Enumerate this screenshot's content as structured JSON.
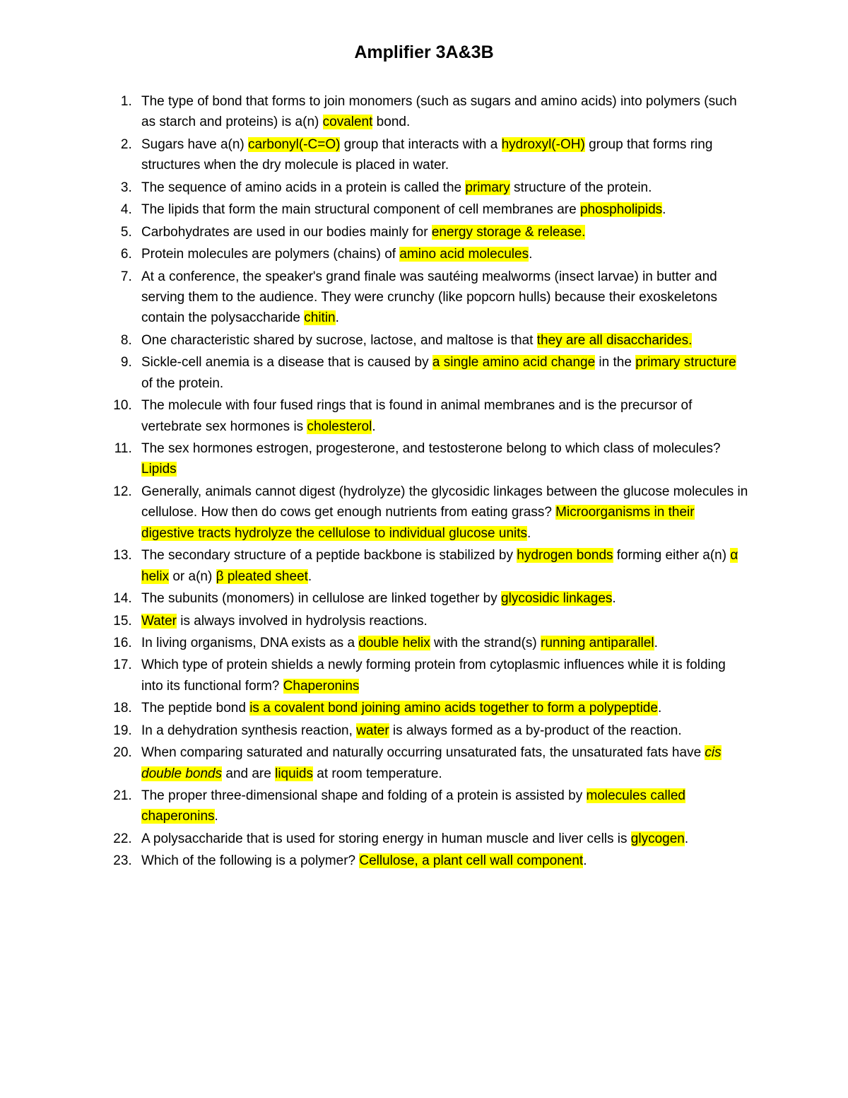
{
  "title": "Amplifier 3A&3B",
  "highlight_color": "#ffff00",
  "background_color": "#ffffff",
  "text_color": "#000000",
  "title_fontsize": 25,
  "body_fontsize": 19,
  "items": [
    {
      "segments": [
        {
          "t": "The type of bond that forms to join monomers (such as sugars and amino acids) into polymers (such as starch and proteins) is a(n) "
        },
        {
          "t": "covalent",
          "hl": true
        },
        {
          "t": " bond."
        }
      ]
    },
    {
      "segments": [
        {
          "t": "Sugars have a(n) "
        },
        {
          "t": "carbonyl(-C=O)",
          "hl": true
        },
        {
          "t": " group that interacts with a "
        },
        {
          "t": "hydroxyl(-OH)",
          "hl": true
        },
        {
          "t": " group that forms ring structures when the dry molecule is placed in water."
        }
      ]
    },
    {
      "segments": [
        {
          "t": "The sequence of amino acids in a protein is called the "
        },
        {
          "t": "primary",
          "hl": true
        },
        {
          "t": " structure of the protein."
        }
      ]
    },
    {
      "segments": [
        {
          "t": "The lipids that form the main structural component of cell membranes are "
        },
        {
          "t": "phospholipids",
          "hl": true
        },
        {
          "t": "."
        }
      ]
    },
    {
      "segments": [
        {
          "t": "Carbohydrates are used in our bodies mainly for "
        },
        {
          "t": "energy storage & release.",
          "hl": true
        }
      ]
    },
    {
      "segments": [
        {
          "t": "Protein molecules are polymers (chains) of "
        },
        {
          "t": "amino acid molecules",
          "hl": true
        },
        {
          "t": "."
        }
      ]
    },
    {
      "segments": [
        {
          "t": "At a conference, the speaker's grand finale was sautéing mealworms (insect larvae) in butter and serving them to the audience. They were crunchy (like popcorn hulls) because their exoskeletons contain the polysaccharide "
        },
        {
          "t": "chitin",
          "hl": true
        },
        {
          "t": "."
        }
      ]
    },
    {
      "segments": [
        {
          "t": "One characteristic shared by sucrose, lactose, and maltose is that "
        },
        {
          "t": "they are all disaccharides.",
          "hl": true
        }
      ]
    },
    {
      "segments": [
        {
          "t": "Sickle-cell anemia is a disease that is caused by "
        },
        {
          "t": "a single amino acid change",
          "hl": true
        },
        {
          "t": " in the "
        },
        {
          "t": "primary structure",
          "hl": true
        },
        {
          "t": " of the protein."
        }
      ]
    },
    {
      "segments": [
        {
          "t": "The molecule with four fused rings that is found in animal membranes and is the precursor of vertebrate sex hormones is "
        },
        {
          "t": "cholesterol",
          "hl": true
        },
        {
          "t": "."
        }
      ]
    },
    {
      "segments": [
        {
          "t": "The sex hormones estrogen, progesterone, and testosterone belong to which class of molecules? "
        },
        {
          "t": "Lipids",
          "hl": true
        }
      ]
    },
    {
      "segments": [
        {
          "t": "Generally, animals cannot digest (hydrolyze) the glycosidic linkages between the glucose molecules in cellulose. How then do cows get enough nutrients from eating grass? "
        },
        {
          "t": "Microorganisms in their digestive tracts hydrolyze the cellulose to individual glucose units",
          "hl": true
        },
        {
          "t": "."
        }
      ]
    },
    {
      "segments": [
        {
          "t": "The secondary structure of a peptide backbone is stabilized by "
        },
        {
          "t": "hydrogen bonds",
          "hl": true
        },
        {
          "t": " forming either a(n) "
        },
        {
          "t": "α helix",
          "hl": true
        },
        {
          "t": " or a(n) "
        },
        {
          "t": "β pleated sheet",
          "hl": true
        },
        {
          "t": "."
        }
      ]
    },
    {
      "segments": [
        {
          "t": "The subunits (monomers) in cellulose are linked together by "
        },
        {
          "t": "glycosidic linkages",
          "hl": true
        },
        {
          "t": "."
        }
      ]
    },
    {
      "segments": [
        {
          "t": "Water",
          "hl": true
        },
        {
          "t": " is always involved in hydrolysis reactions."
        }
      ]
    },
    {
      "segments": [
        {
          "t": "In living organisms, DNA exists as a "
        },
        {
          "t": "double helix",
          "hl": true
        },
        {
          "t": " with the strand(s) "
        },
        {
          "t": "running antiparallel",
          "hl": true
        },
        {
          "t": "."
        }
      ]
    },
    {
      "segments": [
        {
          "t": "Which type of protein shields a newly forming protein from cytoplasmic influences while it is folding into its functional form? "
        },
        {
          "t": "Chaperonins",
          "hl": true
        }
      ]
    },
    {
      "segments": [
        {
          "t": "The peptide bond "
        },
        {
          "t": "is a covalent bond joining amino acids together to form a polypeptide",
          "hl": true
        },
        {
          "t": "."
        }
      ]
    },
    {
      "segments": [
        {
          "t": "In a dehydration synthesis reaction, "
        },
        {
          "t": "water",
          "hl": true
        },
        {
          "t": " is always formed as a by-product of the reaction."
        }
      ]
    },
    {
      "segments": [
        {
          "t": "When comparing saturated and naturally occurring unsaturated fats, the unsaturated fats have "
        },
        {
          "t": "cis double bonds",
          "hl": true,
          "italic": true
        },
        {
          "t": " and are "
        },
        {
          "t": "liquids",
          "hl": true
        },
        {
          "t": " at room temperature."
        }
      ]
    },
    {
      "segments": [
        {
          "t": "The proper three-dimensional shape and folding of a protein is assisted by "
        },
        {
          "t": "molecules called chaperonins",
          "hl": true
        },
        {
          "t": "."
        }
      ]
    },
    {
      "segments": [
        {
          "t": "A polysaccharide that is used for storing energy in human muscle and liver cells is "
        },
        {
          "t": "glycogen",
          "hl": true
        },
        {
          "t": "."
        }
      ]
    },
    {
      "segments": [
        {
          "t": "Which of the following is a polymer? "
        },
        {
          "t": "Cellulose, a plant cell wall component",
          "hl": true
        },
        {
          "t": "."
        }
      ]
    }
  ]
}
